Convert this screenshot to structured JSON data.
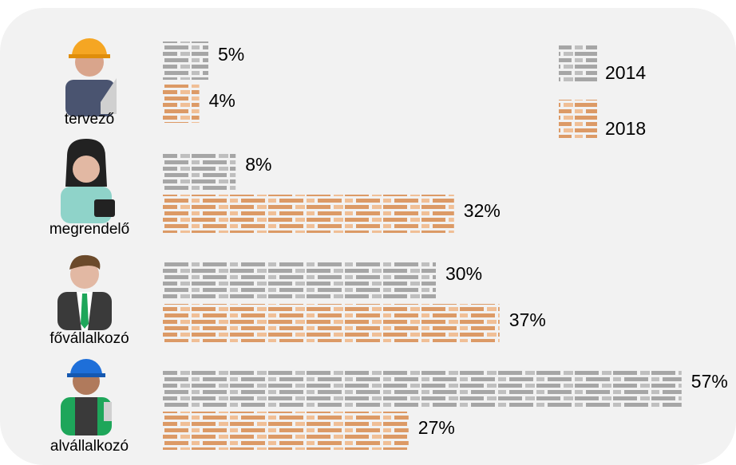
{
  "chart_data": {
    "type": "pictogram-bar",
    "categories": [
      "tervező",
      "megrendelő",
      "fővállalkozó",
      "alvállalkozó"
    ],
    "series": [
      {
        "name": "2014",
        "color": "#a6a6a6",
        "values": [
          5,
          8,
          30,
          57
        ],
        "value_labels": [
          "5%",
          "8%",
          "30%",
          "57%"
        ]
      },
      {
        "name": "2018",
        "color": "#dc9a66",
        "values": [
          4,
          32,
          37,
          27
        ],
        "value_labels": [
          "4%",
          "32%",
          "37%",
          "27%"
        ]
      }
    ],
    "legend": "top-right"
  }
}
